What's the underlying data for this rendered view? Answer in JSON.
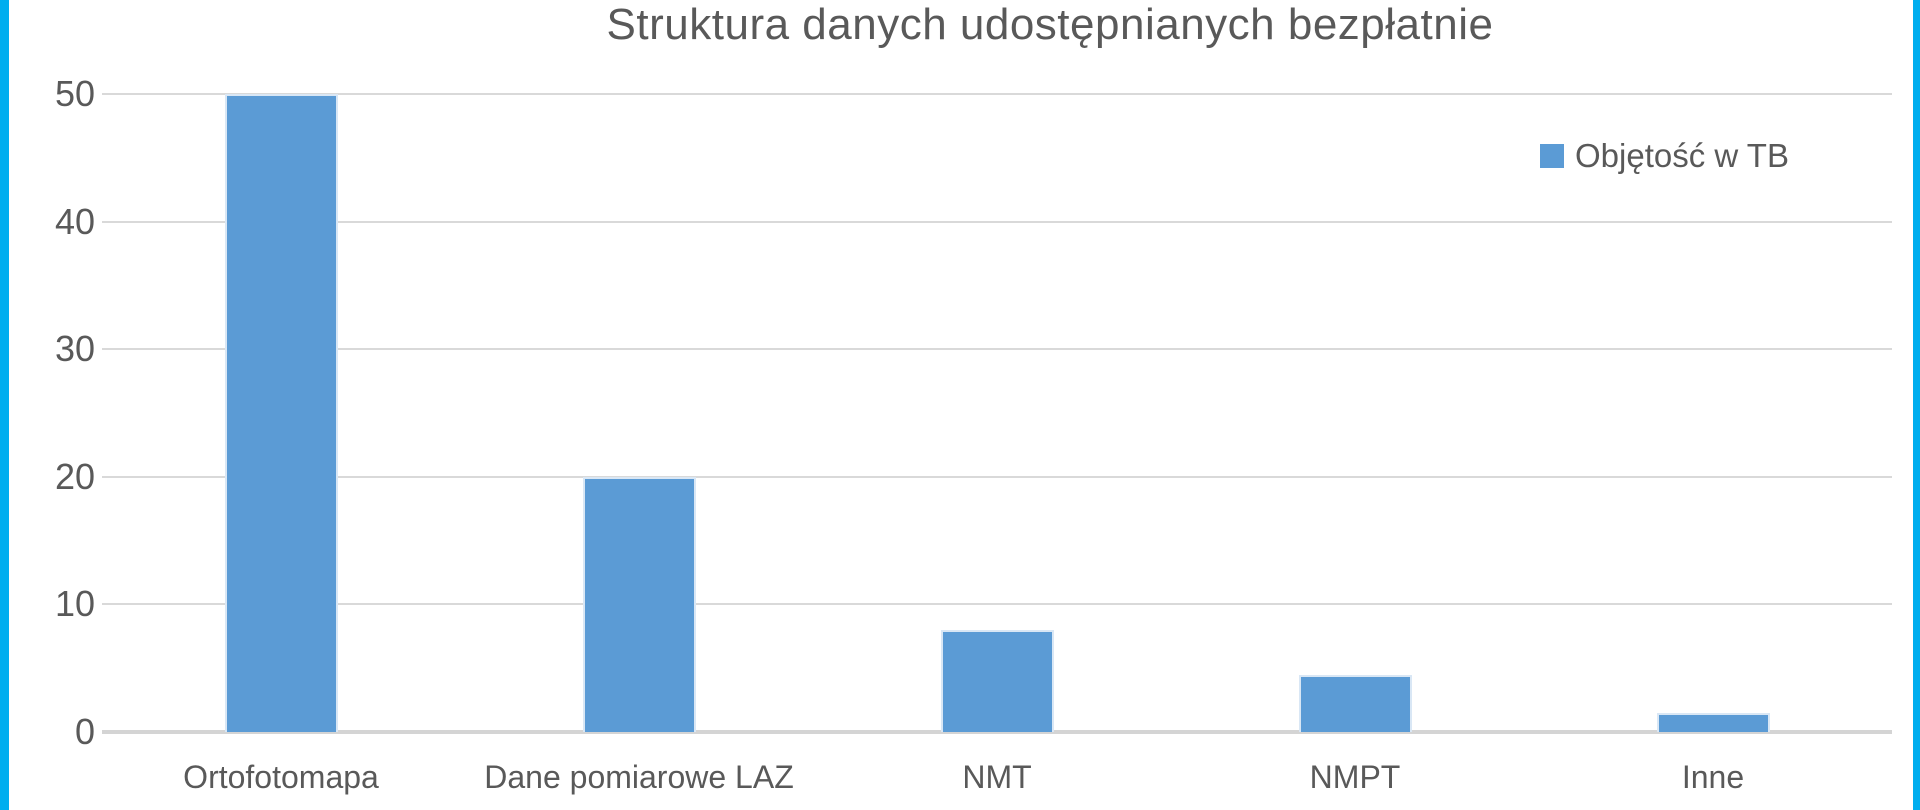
{
  "frame": {
    "accent_color": "#00AEEF"
  },
  "chart": {
    "title": "Struktura danych udostępnianych bezpłatnie",
    "legend": {
      "label": "Objętość w TB",
      "swatch_color": "#5B9BD5"
    }
  },
  "chart_data": {
    "type": "bar",
    "title": "Struktura danych udostępnianych bezpłatnie",
    "categories": [
      "Ortofotomapa",
      "Dane pomiarowe LAZ",
      "NMT",
      "NMPT",
      "Inne"
    ],
    "series": [
      {
        "name": "Objętość w TB",
        "values": [
          50,
          20,
          8,
          4.5,
          1.5
        ]
      }
    ],
    "xlabel": "",
    "ylabel": "",
    "ylim": [
      0,
      50
    ],
    "yticks": [
      0,
      10,
      20,
      30,
      40,
      50
    ],
    "grid": true,
    "legend_position": "top-right",
    "bar_color": "#5B9BD5",
    "bar_border_color": "#D9E7F5",
    "gridline_color": "#D9D9D9",
    "text_color": "#595959"
  }
}
